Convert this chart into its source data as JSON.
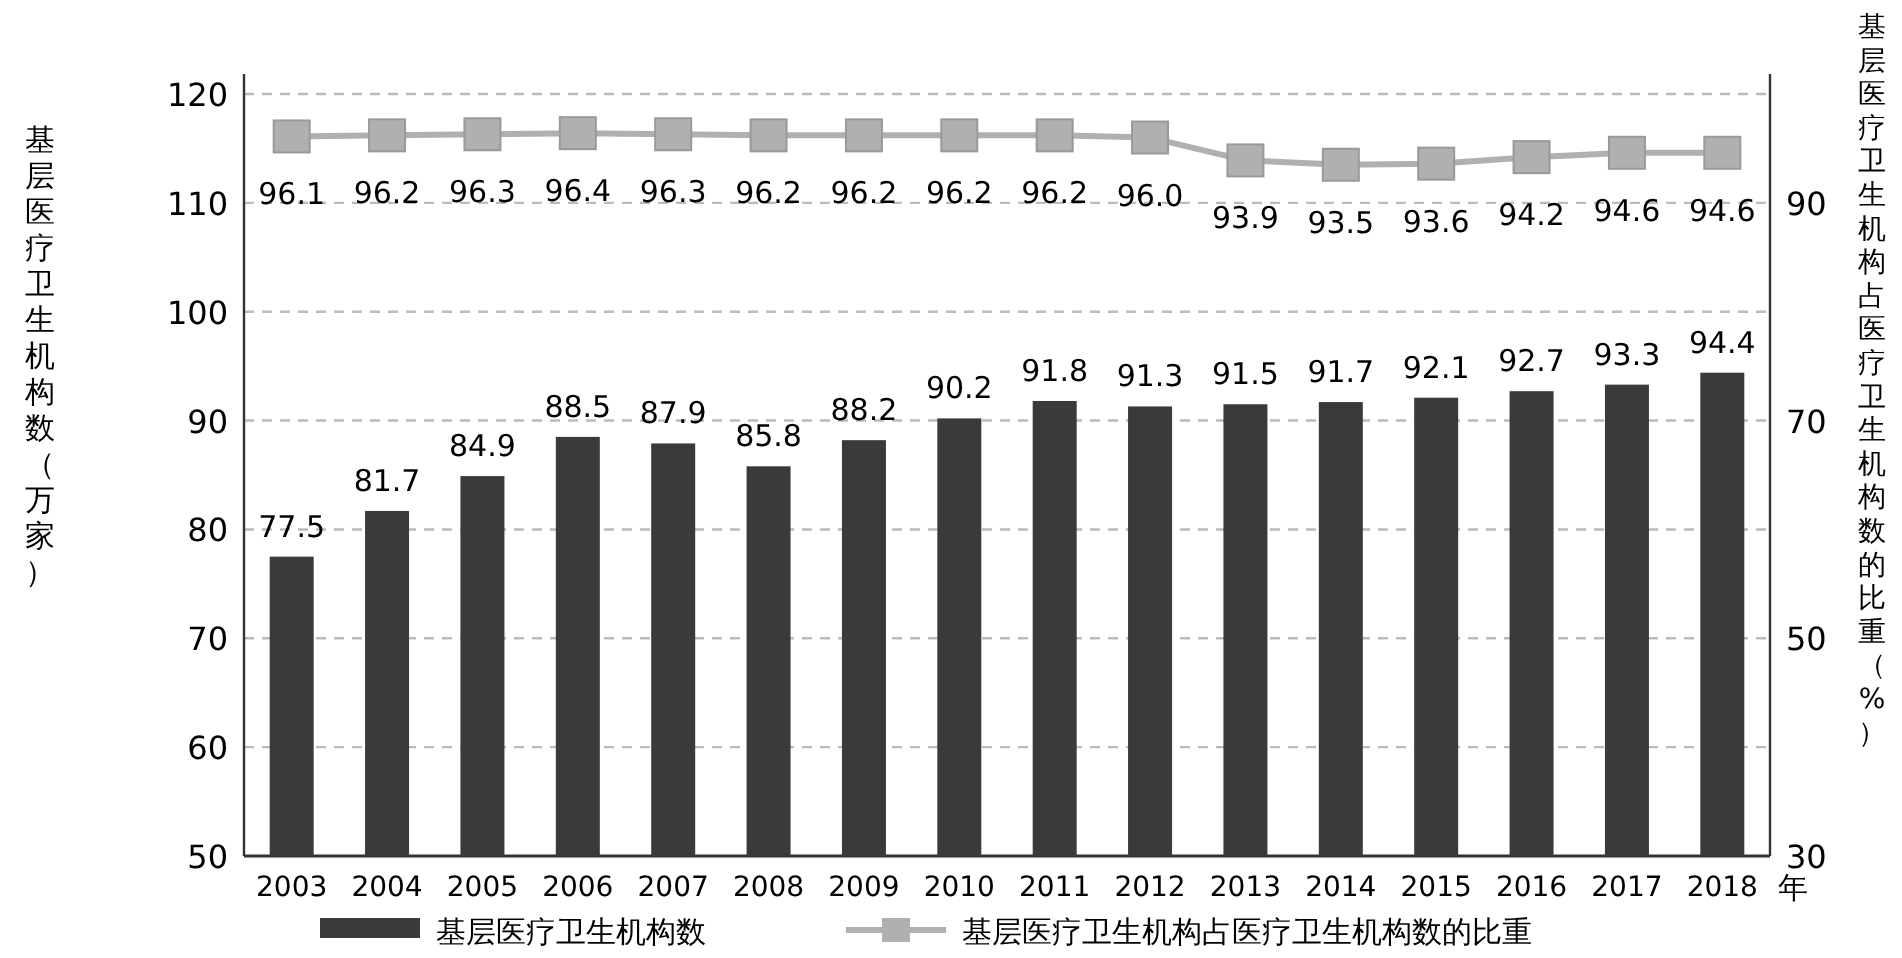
{
  "chart_data": {
    "type": "bar",
    "categories": [
      "2003",
      "2004",
      "2005",
      "2006",
      "2007",
      "2008",
      "2009",
      "2010",
      "2011",
      "2012",
      "2013",
      "2014",
      "2015",
      "2016",
      "2017",
      "2018"
    ],
    "series": [
      {
        "name": "基层医疗卫生机构数",
        "color": "#3a3a3a",
        "values": [
          77.5,
          81.7,
          84.9,
          88.5,
          87.9,
          85.8,
          88.2,
          90.2,
          91.8,
          91.3,
          91.5,
          91.7,
          92.1,
          92.7,
          93.3,
          94.4
        ],
        "value_labels": [
          "77.5",
          "81.7",
          "84.9",
          "88.5",
          "87.9",
          "85.8",
          "88.2",
          "90.2",
          "91.8",
          "91.3",
          "91.5",
          "91.7",
          "92.1",
          "92.7",
          "93.3",
          "94.4"
        ]
      },
      {
        "name": "基层医疗卫生机构占医疗卫生机构数的比重",
        "type": "line",
        "axis": "y2",
        "color": "#b0b0b0",
        "values": [
          96.1,
          96.2,
          96.3,
          96.4,
          96.3,
          96.2,
          96.2,
          96.2,
          96.2,
          96.0,
          93.9,
          93.5,
          93.6,
          94.2,
          94.6,
          94.6
        ],
        "value_labels": [
          "96.1",
          "96.2",
          "96.3",
          "96.4",
          "96.3",
          "96.2",
          "96.2",
          "96.2",
          "96.2",
          "96.0",
          "93.9",
          "93.5",
          "93.6",
          "94.2",
          "94.6",
          "94.6"
        ]
      }
    ],
    "xlabel": "年",
    "ylabel": "基层医疗卫生机构数（万家）",
    "y2label": "基层医疗卫生机构占医疗卫生机构数的比重（%）",
    "ylim": [
      50,
      120
    ],
    "yticks": [
      50,
      60,
      70,
      80,
      90,
      100,
      110,
      120
    ],
    "y2lim": [
      30,
      100
    ],
    "y2ticks": [
      30,
      50,
      70,
      90
    ],
    "grid": "y",
    "legend": "bottom",
    "marker": "square"
  }
}
